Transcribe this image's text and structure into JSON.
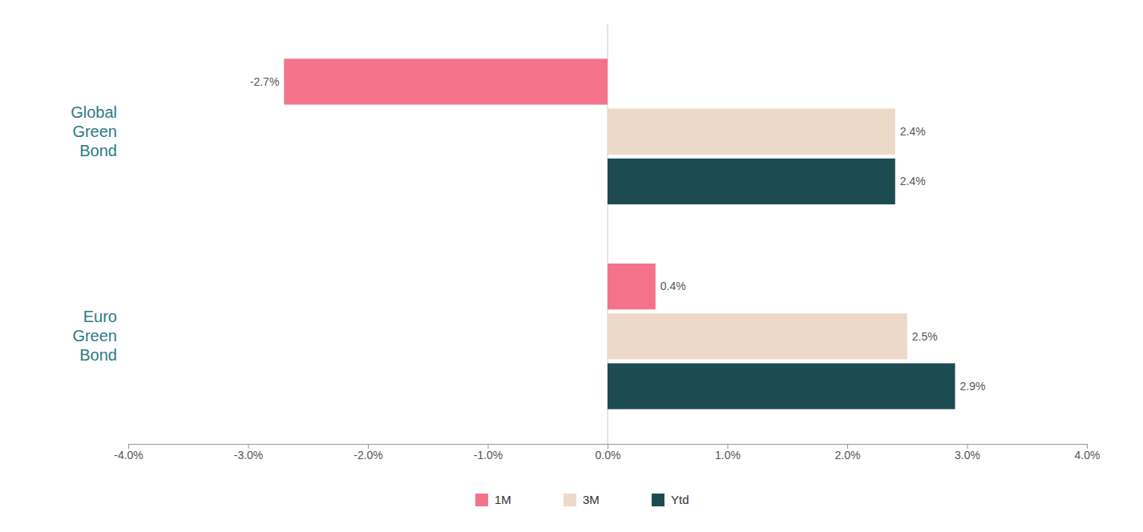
{
  "chart_data": {
    "type": "bar",
    "orientation": "horizontal",
    "categories": [
      "Global\nGreen\nBond",
      "Euro\nGreen\nBond"
    ],
    "series": [
      {
        "name": "1M",
        "color": "#F4738A",
        "values": [
          -2.7,
          0.4
        ],
        "value_labels": [
          "-2.7%",
          "0.4%"
        ]
      },
      {
        "name": "3M",
        "color": "#EDD9C8",
        "values": [
          2.4,
          2.5
        ],
        "value_labels": [
          "2.4%",
          "2.5%"
        ]
      },
      {
        "name": "Ytd",
        "color": "#1D4B52",
        "values": [
          2.4,
          2.9
        ],
        "value_labels": [
          "2.4%",
          "2.9%"
        ]
      }
    ],
    "xlim": [
      -4.0,
      4.0
    ],
    "xticks": [
      {
        "value": -4.0,
        "label": "-4.0%"
      },
      {
        "value": -3.0,
        "label": "-3.0%"
      },
      {
        "value": -2.0,
        "label": "-2.0%"
      },
      {
        "value": -1.0,
        "label": "-1.0%"
      },
      {
        "value": 0.0,
        "label": "0.0%"
      },
      {
        "value": 1.0,
        "label": "1.0%"
      },
      {
        "value": 2.0,
        "label": "2.0%"
      },
      {
        "value": 3.0,
        "label": "3.0%"
      },
      {
        "value": 4.0,
        "label": "4.0%"
      }
    ],
    "grid": false,
    "legend": "bottom",
    "data_labels": true
  }
}
